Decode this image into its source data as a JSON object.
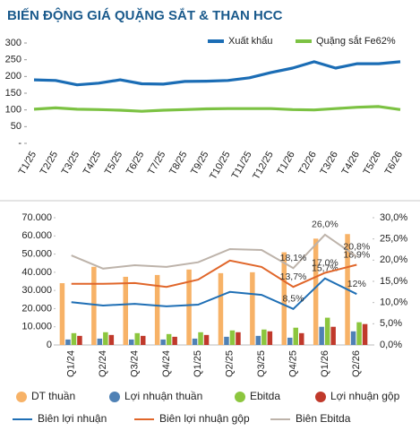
{
  "chart_data": [
    {
      "type": "line",
      "title": "BIẾN ĐỘNG GIÁ QUẶNG SẮT & THAN HCC",
      "categories": [
        "T1/25",
        "T2/25",
        "T3/25",
        "T4/25",
        "T5/25",
        "T6/25",
        "T7/25",
        "T8/25",
        "T9/25",
        "T10/25",
        "T11/25",
        "T12/25",
        "T1/26",
        "T2/26",
        "T3/26",
        "T4/26",
        "T5/26",
        "T6/26"
      ],
      "series": [
        {
          "name": "Xuất khẩu",
          "color": "#1b6db5",
          "values": [
            190,
            188,
            175,
            180,
            190,
            178,
            177,
            185,
            186,
            188,
            196,
            212,
            225,
            244,
            225,
            238,
            238,
            244
          ]
        },
        {
          "name": "Quặng sắt Fe62%",
          "color": "#7cc243",
          "values": [
            102,
            106,
            102,
            101,
            99,
            96,
            99,
            101,
            103,
            104,
            104,
            104,
            101,
            100,
            104,
            108,
            110,
            101
          ]
        }
      ],
      "ylim": [
        0,
        300
      ],
      "yticks": [
        {
          "value": 0,
          "label": "-"
        },
        50,
        100,
        150,
        200,
        250,
        300
      ],
      "legend": "top-right"
    },
    {
      "type": "combo",
      "categories": [
        "Q1/24",
        "Q2/24",
        "Q3/24",
        "Q4/24",
        "Q1/25",
        "Q2/25",
        "Q3/25",
        "Q4/25",
        "Q1/26",
        "Q2/26"
      ],
      "series": [
        {
          "name": "DT thuần",
          "type": "bar",
          "color": "#f7b267",
          "values": [
            34000,
            43000,
            37500,
            38500,
            41500,
            39500,
            40000,
            51000,
            58500,
            61000
          ]
        },
        {
          "name": "Lợi nhuận thuần",
          "type": "bar",
          "color": "#4f81b5",
          "values": [
            3000,
            3500,
            3000,
            3000,
            3500,
            4500,
            5000,
            4000,
            10000,
            7500
          ]
        },
        {
          "name": "Ebitda",
          "type": "bar",
          "color": "#8cc63e",
          "values": [
            6500,
            7000,
            6500,
            6000,
            7000,
            8000,
            8500,
            9500,
            15000,
            12500
          ]
        },
        {
          "name": "Lợi nhuận gộp",
          "type": "bar",
          "color": "#c0392b",
          "values": [
            5000,
            5500,
            5000,
            4500,
            5500,
            7000,
            7500,
            6500,
            10000,
            11500
          ]
        },
        {
          "name": "Biên lợi nhuận",
          "type": "line",
          "axis": "y2",
          "color": "#1f6fb5",
          "values": [
            10.1,
            9.3,
            9.7,
            9.1,
            9.5,
            12.5,
            11.8,
            8.5,
            15.7,
            12
          ],
          "value_labels": [
            null,
            null,
            null,
            null,
            null,
            null,
            null,
            "8,5%",
            "15,7%",
            "12%"
          ]
        },
        {
          "name": "Biên lợi nhuận gộp",
          "type": "line",
          "axis": "y2",
          "color": "#e0662a",
          "values": [
            14.4,
            14.4,
            14.6,
            13.7,
            15.4,
            19.9,
            18.4,
            13.7,
            17.0,
            18.9
          ],
          "value_labels": [
            null,
            null,
            null,
            null,
            null,
            null,
            null,
            "13,7%",
            "17,0%",
            "18,9%"
          ]
        },
        {
          "name": "Biên Ebitda",
          "type": "line",
          "axis": "y2",
          "color": "#bdb3aa",
          "values": [
            21.1,
            18.0,
            18.8,
            18.4,
            19.5,
            22.6,
            22.4,
            18.1,
            26.0,
            20.8
          ],
          "value_labels": [
            null,
            null,
            null,
            null,
            null,
            null,
            null,
            "18,1%",
            "26,0%",
            "20,8%"
          ]
        }
      ],
      "ylim": [
        0,
        70000
      ],
      "yticks": [
        0,
        {
          "value": 10000,
          "label": "10.000"
        },
        {
          "value": 20000,
          "label": "20.000"
        },
        {
          "value": 30000,
          "label": "30.000"
        },
        {
          "value": 40000,
          "label": "40.000"
        },
        {
          "value": 50000,
          "label": "50.000"
        },
        {
          "value": 60000,
          "label": "60.000"
        },
        {
          "value": 70000,
          "label": "70.000"
        }
      ],
      "y2lim": [
        0,
        30
      ],
      "y2ticks": [
        {
          "value": 0,
          "label": "0,0%"
        },
        {
          "value": 5,
          "label": "5,0%"
        },
        {
          "value": 10,
          "label": "10,0%"
        },
        {
          "value": 15,
          "label": "15,0%"
        },
        {
          "value": 20,
          "label": "20,0%"
        },
        {
          "value": 25,
          "label": "25,0%"
        },
        {
          "value": 30,
          "label": "30,0%"
        }
      ],
      "legend": "bottom"
    }
  ]
}
